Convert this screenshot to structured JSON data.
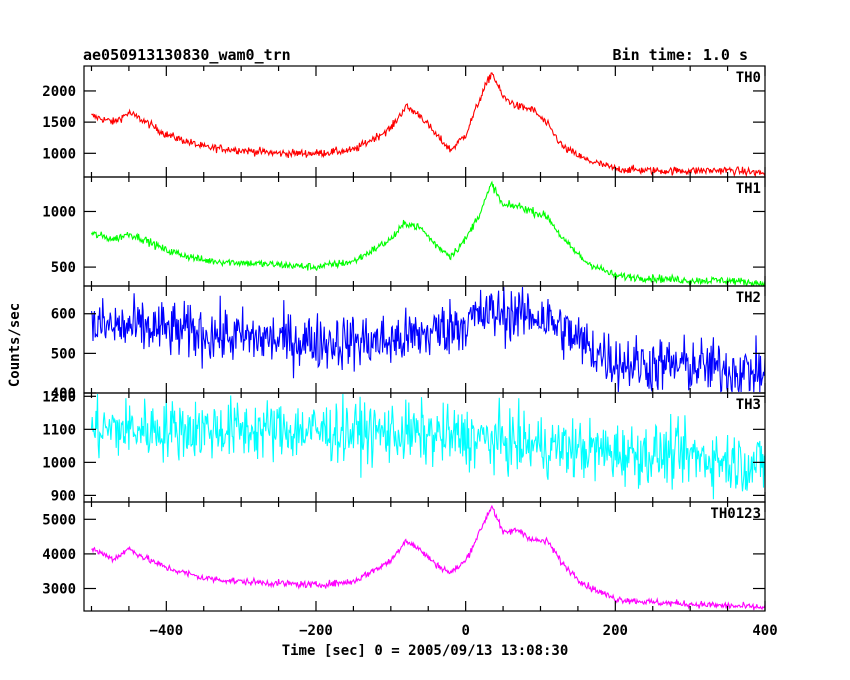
{
  "header": {
    "title": "ae050913130830_wam0_trn",
    "bin_time": "Bin time: 1.0 s"
  },
  "chart_data": {
    "type": "line",
    "x_label": "Time [sec] 0 = 2005/09/13 13:08:30",
    "y_label": "Counts/sec",
    "xlim": [
      -510,
      400
    ],
    "x_ticks": [
      -400,
      -200,
      0,
      200,
      400
    ],
    "panels": [
      {
        "name": "TH0",
        "color": "#ff0000",
        "ylim": [
          620,
          2400
        ],
        "yticks": [
          1000,
          1500,
          2000
        ],
        "noise": 45,
        "x": [
          -500,
          -470,
          -450,
          -430,
          -400,
          -350,
          -300,
          -250,
          -200,
          -150,
          -100,
          -80,
          -60,
          -40,
          -20,
          0,
          20,
          35,
          50,
          70,
          90,
          110,
          130,
          160,
          200,
          250,
          300,
          350,
          400
        ],
        "y": [
          1600,
          1500,
          1650,
          1520,
          1300,
          1100,
          1050,
          1000,
          1000,
          1050,
          1400,
          1750,
          1600,
          1300,
          1050,
          1300,
          1900,
          2300,
          1900,
          1750,
          1700,
          1450,
          1100,
          900,
          750,
          720,
          720,
          730,
          680
        ]
      },
      {
        "name": "TH1",
        "color": "#00ff00",
        "ylim": [
          330,
          1310
        ],
        "yticks": [
          500,
          1000
        ],
        "noise": 25,
        "x": [
          -500,
          -470,
          -450,
          -430,
          -400,
          -350,
          -300,
          -250,
          -200,
          -150,
          -100,
          -80,
          -60,
          -40,
          -20,
          0,
          20,
          35,
          50,
          70,
          90,
          110,
          130,
          160,
          200,
          250,
          300,
          350,
          400
        ],
        "y": [
          800,
          750,
          800,
          750,
          650,
          560,
          540,
          520,
          500,
          550,
          750,
          900,
          850,
          700,
          600,
          750,
          1000,
          1250,
          1050,
          1050,
          1000,
          950,
          750,
          550,
          420,
          400,
          380,
          380,
          350
        ]
      },
      {
        "name": "TH2",
        "color": "#0000ff",
        "ylim": [
          400,
          670
        ],
        "yticks": [
          400,
          500,
          600
        ],
        "noise": 50,
        "x": [
          -500,
          -400,
          -300,
          -200,
          -100,
          -50,
          0,
          30,
          60,
          100,
          130,
          160,
          200,
          250,
          300,
          350,
          400
        ],
        "y": [
          570,
          560,
          540,
          530,
          530,
          550,
          580,
          600,
          600,
          595,
          560,
          520,
          480,
          470,
          470,
          460,
          450
        ]
      },
      {
        "name": "TH3",
        "color": "#00ffff",
        "ylim": [
          880,
          1210
        ],
        "yticks": [
          900,
          1000,
          1100,
          1200
        ],
        "noise": 65,
        "x": [
          -500,
          -400,
          -300,
          -200,
          -100,
          0,
          100,
          200,
          300,
          400
        ],
        "y": [
          1100,
          1100,
          1100,
          1095,
          1090,
          1075,
          1050,
          1030,
          1020,
          990
        ]
      },
      {
        "name": "TH0123",
        "color": "#ff00ff",
        "ylim": [
          2350,
          5500
        ],
        "yticks": [
          3000,
          4000,
          5000
        ],
        "noise": 70,
        "x": [
          -500,
          -470,
          -450,
          -430,
          -400,
          -350,
          -300,
          -250,
          -200,
          -150,
          -100,
          -80,
          -60,
          -40,
          -20,
          0,
          20,
          35,
          50,
          70,
          90,
          110,
          130,
          160,
          200,
          250,
          300,
          350,
          400
        ],
        "y": [
          4150,
          3850,
          4150,
          3900,
          3600,
          3300,
          3200,
          3150,
          3100,
          3200,
          3800,
          4400,
          4100,
          3700,
          3450,
          3800,
          4700,
          5400,
          4600,
          4700,
          4400,
          4350,
          3700,
          3100,
          2700,
          2600,
          2550,
          2500,
          2450
        ]
      }
    ]
  }
}
